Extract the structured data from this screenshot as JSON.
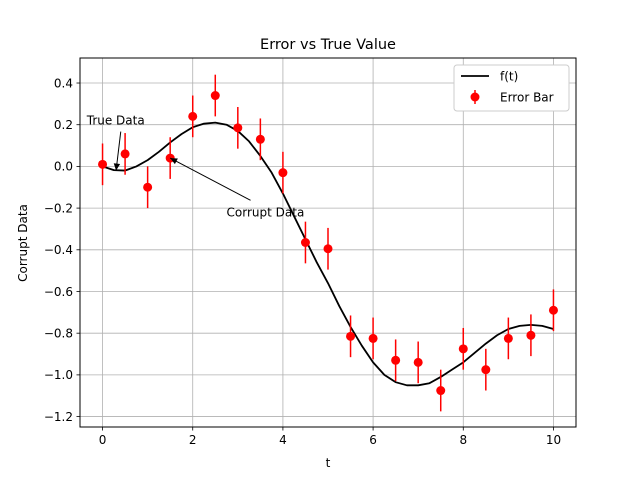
{
  "chart_data": {
    "type": "line",
    "title": "Error vs True Value",
    "xlabel": "t",
    "ylabel": "Corrupt Data",
    "xlim": [
      -0.5,
      10.5
    ],
    "ylim": [
      -1.25,
      0.52
    ],
    "grid": true,
    "legend_position": "top-right",
    "x_ticks": [
      0,
      2,
      4,
      6,
      8,
      10
    ],
    "x_tick_labels": [
      "0",
      "2",
      "4",
      "6",
      "8",
      "10"
    ],
    "y_ticks": [
      0.4,
      0.2,
      0.0,
      -0.2,
      -0.4,
      -0.6,
      -0.8,
      -1.0,
      -1.2
    ],
    "y_tick_labels": [
      "0.4",
      "0.2",
      "0.0",
      "−0.2",
      "−0.4",
      "−0.6",
      "−0.8",
      "−1.0",
      "−1.2"
    ],
    "series": [
      {
        "name": "f(t)",
        "kind": "line",
        "color": "#000000",
        "x": [
          0,
          0.25,
          0.5,
          0.75,
          1,
          1.25,
          1.5,
          1.75,
          2,
          2.25,
          2.5,
          2.75,
          3,
          3.25,
          3.5,
          3.75,
          4,
          4.25,
          4.5,
          4.75,
          5,
          5.25,
          5.5,
          5.75,
          6,
          6.25,
          6.5,
          6.75,
          7,
          7.25,
          7.5,
          7.75,
          8,
          8.25,
          8.5,
          8.75,
          9,
          9.25,
          9.5,
          9.75,
          10
        ],
        "y": [
          0,
          -0.018,
          -0.02,
          0,
          0.03,
          0.07,
          0.115,
          0.155,
          0.188,
          0.205,
          0.21,
          0.2,
          0.17,
          0.12,
          0.05,
          -0.03,
          -0.13,
          -0.24,
          -0.35,
          -0.46,
          -0.56,
          -0.67,
          -0.77,
          -0.86,
          -0.94,
          -1.0,
          -1.035,
          -1.05,
          -1.05,
          -1.04,
          -1.01,
          -0.975,
          -0.94,
          -0.895,
          -0.85,
          -0.81,
          -0.78,
          -0.765,
          -0.76,
          -0.765,
          -0.78
        ]
      },
      {
        "name": "Error Bar",
        "kind": "errorbar",
        "color": "#ff0000",
        "x": [
          0,
          0.5,
          1,
          1.5,
          2,
          2.5,
          3,
          3.5,
          4,
          4.5,
          5,
          5.5,
          6,
          6.5,
          7,
          7.5,
          8,
          8.5,
          9,
          9.5,
          10
        ],
        "y": [
          0.01,
          0.06,
          -0.1,
          0.04,
          0.24,
          0.34,
          0.185,
          0.13,
          -0.03,
          -0.365,
          -0.395,
          -0.815,
          -0.825,
          -0.93,
          -0.94,
          -1.075,
          -0.875,
          -0.975,
          -0.825,
          -0.81,
          -0.69
        ],
        "yerr": 0.1
      }
    ],
    "annotations": [
      {
        "text": "True Data",
        "text_x": -0.35,
        "text_y": 0.22,
        "point_x": 0.3,
        "point_y": -0.02
      },
      {
        "text": "Corrupt Data",
        "text_x": 2.75,
        "text_y": -0.22,
        "point_x": 1.5,
        "point_y": 0.04
      }
    ]
  }
}
